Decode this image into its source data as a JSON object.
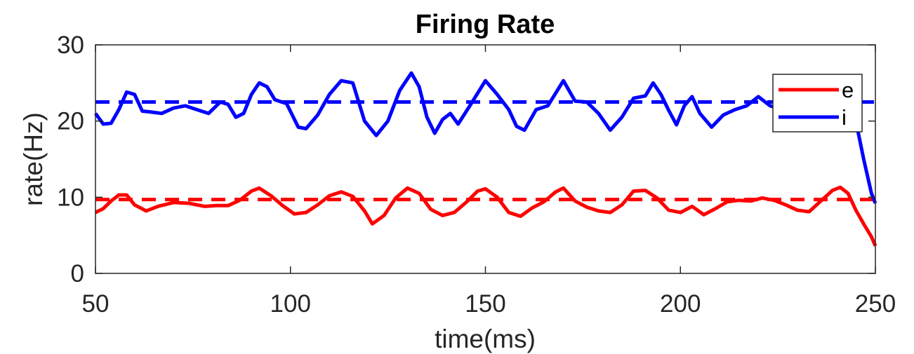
{
  "chart_data": {
    "type": "line",
    "title": "Firing Rate",
    "xlabel": "time(ms)",
    "ylabel": "rate(Hz)",
    "xlim": [
      50,
      250
    ],
    "ylim": [
      0,
      30
    ],
    "xticks": [
      50,
      100,
      150,
      200,
      250
    ],
    "yticks": [
      0,
      10,
      20,
      30
    ],
    "grid": false,
    "legend_position": "top-right",
    "series": [
      {
        "name": "e",
        "color": "#ff0000",
        "style": "solid",
        "x": [
          50,
          52,
          54,
          56,
          58,
          60,
          63,
          66,
          70,
          74,
          78,
          81,
          84,
          87,
          90,
          92,
          95,
          98,
          101,
          104,
          107,
          110,
          113,
          116,
          119,
          121,
          124,
          127,
          130,
          133,
          136,
          139,
          142,
          145,
          148,
          150,
          153,
          156,
          159,
          162,
          165,
          168,
          170,
          173,
          176,
          179,
          182,
          185,
          188,
          191,
          194,
          197,
          200,
          203,
          206,
          209,
          212,
          215,
          218,
          221,
          224,
          227,
          230,
          233,
          236,
          239,
          241,
          243,
          245,
          247,
          249,
          250
        ],
        "values": [
          8.0,
          8.5,
          9.5,
          10.3,
          10.3,
          9.0,
          8.2,
          8.8,
          9.3,
          9.2,
          8.8,
          8.9,
          8.9,
          9.6,
          10.8,
          11.2,
          10.2,
          8.9,
          7.8,
          8.0,
          9.0,
          10.2,
          10.7,
          10.1,
          8.2,
          6.5,
          7.6,
          9.9,
          11.2,
          10.5,
          8.4,
          7.6,
          8.0,
          9.3,
          10.8,
          11.1,
          10.0,
          8.0,
          7.5,
          8.6,
          9.4,
          10.7,
          11.2,
          9.5,
          8.7,
          8.2,
          8.0,
          9.0,
          10.8,
          10.9,
          9.9,
          8.3,
          8.0,
          8.8,
          7.7,
          8.5,
          9.4,
          9.6,
          9.5,
          9.9,
          9.6,
          9.0,
          8.3,
          8.1,
          9.5,
          10.9,
          11.3,
          10.5,
          8.3,
          6.5,
          4.8,
          3.6
        ]
      },
      {
        "name": "i",
        "color": "#0000ff",
        "style": "solid",
        "x": [
          50,
          52,
          54,
          56,
          58,
          60,
          62,
          64,
          67,
          70,
          73,
          76,
          79,
          82,
          84,
          86,
          88,
          90,
          92,
          94,
          96,
          99,
          102,
          104,
          107,
          110,
          113,
          116,
          119,
          122,
          125,
          128,
          131,
          133,
          135,
          137,
          139,
          141,
          143,
          146,
          150,
          153,
          156,
          158,
          160,
          163,
          166,
          170,
          173,
          176,
          179,
          182,
          185,
          188,
          191,
          193,
          195,
          197,
          199,
          201,
          203,
          205,
          208,
          211,
          214,
          217,
          220,
          223,
          226,
          229,
          232,
          235,
          238,
          241,
          243,
          245,
          247,
          249,
          250
        ],
        "values": [
          21.0,
          19.6,
          19.7,
          21.5,
          23.8,
          23.5,
          21.3,
          21.2,
          21.0,
          21.7,
          22.0,
          21.5,
          21.0,
          22.5,
          22.2,
          20.5,
          21.0,
          23.5,
          25.0,
          24.5,
          22.8,
          22.3,
          19.2,
          19.0,
          20.8,
          23.5,
          25.3,
          25.0,
          20.0,
          18.1,
          20.0,
          24.0,
          26.3,
          24.5,
          20.5,
          18.4,
          20.2,
          21.0,
          19.6,
          22.0,
          25.3,
          23.5,
          21.5,
          19.3,
          18.8,
          21.5,
          22.0,
          25.3,
          22.6,
          22.5,
          21.0,
          18.8,
          20.5,
          23.0,
          23.3,
          25.0,
          23.5,
          21.4,
          19.5,
          22.0,
          23.2,
          21.0,
          19.2,
          20.8,
          21.5,
          22.0,
          23.2,
          22.0,
          21.5,
          22.0,
          19.5,
          21.0,
          22.0,
          22.5,
          22.0,
          20.0,
          15.0,
          10.5,
          9.2
        ]
      },
      {
        "color": "#ff0000",
        "style": "dashed",
        "x": [
          50,
          250
        ],
        "values": [
          9.7,
          9.7
        ]
      },
      {
        "color": "#0000ff",
        "style": "dashed",
        "x": [
          50,
          250
        ],
        "values": [
          22.5,
          22.5
        ]
      }
    ]
  }
}
